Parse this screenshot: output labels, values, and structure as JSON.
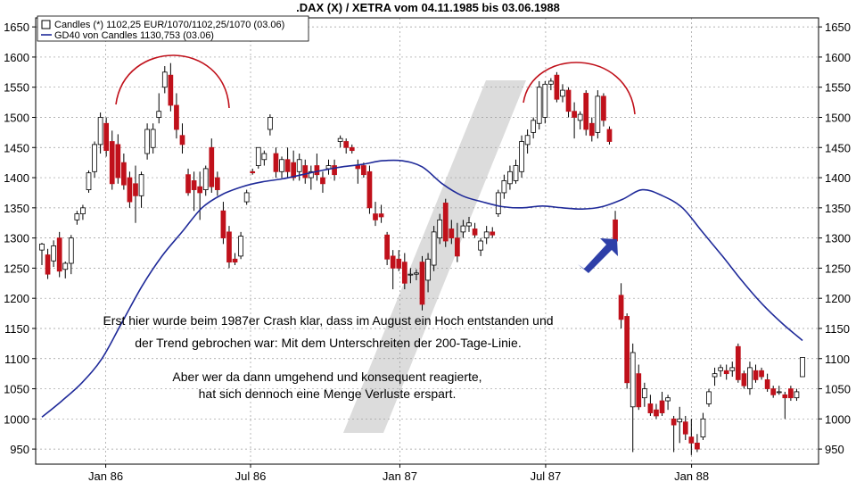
{
  "chart_data": {
    "type": "candlestick",
    "title": ".DAX (X) / XETRA vom 04.11.1985 bis 03.06.1988",
    "ylim": [
      925,
      1665
    ],
    "y_ticks": [
      950,
      1000,
      1050,
      1100,
      1150,
      1200,
      1250,
      1300,
      1350,
      1400,
      1450,
      1500,
      1550,
      1600,
      1650
    ],
    "x_ticks": [
      "Jan 86",
      "Jul 86",
      "Jan 87",
      "Jul 87",
      "Jan 88"
    ],
    "grid": true,
    "legend_position": "top-left",
    "colors": {
      "up_candle": "#ffffff",
      "down_candle": "#c0111b",
      "wick": "#000000",
      "ma_line": "#1f2a99",
      "arc": "#c0111b",
      "arrow": "#2e3fa8",
      "watermark": "#dcdcdc",
      "grid": "#999999"
    },
    "legend": [
      {
        "label": "Candles (*) 1102,25 EUR/1070/1102,25/1070 (03.06)",
        "swatch": "candle"
      },
      {
        "label": "GD40 von Candles 1130,753 (03.06)",
        "swatch": "line"
      }
    ],
    "candles_note": "weekly OHLC estimated from the chart",
    "candles": [
      {
        "o": 1280,
        "h": 1292,
        "l": 1255,
        "c": 1290
      },
      {
        "o": 1272,
        "h": 1282,
        "l": 1232,
        "c": 1240
      },
      {
        "o": 1262,
        "h": 1296,
        "l": 1252,
        "c": 1287
      },
      {
        "o": 1300,
        "h": 1310,
        "l": 1235,
        "c": 1245
      },
      {
        "o": 1248,
        "h": 1261,
        "l": 1233,
        "c": 1258
      },
      {
        "o": 1258,
        "h": 1305,
        "l": 1240,
        "c": 1300
      },
      {
        "o": 1330,
        "h": 1345,
        "l": 1322,
        "c": 1340
      },
      {
        "o": 1340,
        "h": 1355,
        "l": 1330,
        "c": 1350
      },
      {
        "o": 1380,
        "h": 1412,
        "l": 1375,
        "c": 1408
      },
      {
        "o": 1410,
        "h": 1460,
        "l": 1400,
        "c": 1455
      },
      {
        "o": 1455,
        "h": 1508,
        "l": 1440,
        "c": 1500
      },
      {
        "o": 1490,
        "h": 1500,
        "l": 1435,
        "c": 1445
      },
      {
        "o": 1460,
        "h": 1478,
        "l": 1380,
        "c": 1390
      },
      {
        "o": 1455,
        "h": 1472,
        "l": 1390,
        "c": 1400
      },
      {
        "o": 1425,
        "h": 1440,
        "l": 1380,
        "c": 1388
      },
      {
        "o": 1400,
        "h": 1410,
        "l": 1350,
        "c": 1360
      },
      {
        "o": 1390,
        "h": 1420,
        "l": 1325,
        "c": 1370
      },
      {
        "o": 1370,
        "h": 1410,
        "l": 1350,
        "c": 1405
      },
      {
        "o": 1440,
        "h": 1490,
        "l": 1430,
        "c": 1480
      },
      {
        "o": 1450,
        "h": 1490,
        "l": 1440,
        "c": 1480
      },
      {
        "o": 1500,
        "h": 1540,
        "l": 1490,
        "c": 1510
      },
      {
        "o": 1550,
        "h": 1585,
        "l": 1540,
        "c": 1575
      },
      {
        "o": 1570,
        "h": 1590,
        "l": 1510,
        "c": 1520
      },
      {
        "o": 1520,
        "h": 1540,
        "l": 1465,
        "c": 1480
      },
      {
        "o": 1470,
        "h": 1490,
        "l": 1440,
        "c": 1455
      },
      {
        "o": 1405,
        "h": 1415,
        "l": 1370,
        "c": 1375
      },
      {
        "o": 1395,
        "h": 1410,
        "l": 1345,
        "c": 1380
      },
      {
        "o": 1385,
        "h": 1410,
        "l": 1330,
        "c": 1375
      },
      {
        "o": 1380,
        "h": 1420,
        "l": 1370,
        "c": 1415
      },
      {
        "o": 1450,
        "h": 1465,
        "l": 1375,
        "c": 1385
      },
      {
        "o": 1400,
        "h": 1410,
        "l": 1370,
        "c": 1380
      },
      {
        "o": 1345,
        "h": 1360,
        "l": 1290,
        "c": 1300
      },
      {
        "o": 1310,
        "h": 1320,
        "l": 1250,
        "c": 1260
      },
      {
        "o": 1265,
        "h": 1275,
        "l": 1255,
        "c": 1260
      },
      {
        "o": 1270,
        "h": 1310,
        "l": 1265,
        "c": 1303
      },
      {
        "o": 1360,
        "h": 1380,
        "l": 1355,
        "c": 1375
      },
      {
        "o": 1410,
        "h": 1415,
        "l": 1405,
        "c": 1408
      },
      {
        "o": 1420,
        "h": 1450,
        "l": 1415,
        "c": 1450
      },
      {
        "o": 1430,
        "h": 1445,
        "l": 1420,
        "c": 1440
      },
      {
        "o": 1480,
        "h": 1505,
        "l": 1470,
        "c": 1500
      },
      {
        "o": 1440,
        "h": 1450,
        "l": 1400,
        "c": 1410
      },
      {
        "o": 1410,
        "h": 1435,
        "l": 1400,
        "c": 1430
      },
      {
        "o": 1430,
        "h": 1450,
        "l": 1400,
        "c": 1410
      },
      {
        "o": 1425,
        "h": 1445,
        "l": 1395,
        "c": 1400
      },
      {
        "o": 1410,
        "h": 1440,
        "l": 1395,
        "c": 1430
      },
      {
        "o": 1420,
        "h": 1430,
        "l": 1390,
        "c": 1400
      },
      {
        "o": 1400,
        "h": 1420,
        "l": 1380,
        "c": 1410
      },
      {
        "o": 1420,
        "h": 1440,
        "l": 1395,
        "c": 1405
      },
      {
        "o": 1400,
        "h": 1410,
        "l": 1375,
        "c": 1390
      },
      {
        "o": 1415,
        "h": 1430,
        "l": 1405,
        "c": 1420
      },
      {
        "o": 1420,
        "h": 1430,
        "l": 1395,
        "c": 1405
      },
      {
        "o": 1460,
        "h": 1470,
        "l": 1450,
        "c": 1465
      },
      {
        "o": 1460,
        "h": 1465,
        "l": 1440,
        "c": 1450
      },
      {
        "o": 1450,
        "h": 1455,
        "l": 1440,
        "c": 1445
      },
      {
        "o": 1420,
        "h": 1430,
        "l": 1390,
        "c": 1415
      },
      {
        "o": 1420,
        "h": 1425,
        "l": 1400,
        "c": 1405
      },
      {
        "o": 1410,
        "h": 1420,
        "l": 1340,
        "c": 1350
      },
      {
        "o": 1340,
        "h": 1360,
        "l": 1320,
        "c": 1330
      },
      {
        "o": 1340,
        "h": 1355,
        "l": 1325,
        "c": 1335
      },
      {
        "o": 1305,
        "h": 1310,
        "l": 1255,
        "c": 1265
      },
      {
        "o": 1270,
        "h": 1280,
        "l": 1215,
        "c": 1250
      },
      {
        "o": 1265,
        "h": 1280,
        "l": 1245,
        "c": 1250
      },
      {
        "o": 1260,
        "h": 1275,
        "l": 1215,
        "c": 1225
      },
      {
        "o": 1240,
        "h": 1250,
        "l": 1225,
        "c": 1240
      },
      {
        "o": 1240,
        "h": 1248,
        "l": 1230,
        "c": 1242
      },
      {
        "o": 1260,
        "h": 1270,
        "l": 1180,
        "c": 1190
      },
      {
        "o": 1230,
        "h": 1275,
        "l": 1210,
        "c": 1265
      },
      {
        "o": 1255,
        "h": 1320,
        "l": 1245,
        "c": 1310
      },
      {
        "o": 1300,
        "h": 1340,
        "l": 1290,
        "c": 1330
      },
      {
        "o": 1358,
        "h": 1365,
        "l": 1285,
        "c": 1295
      },
      {
        "o": 1315,
        "h": 1330,
        "l": 1290,
        "c": 1300
      },
      {
        "o": 1300,
        "h": 1325,
        "l": 1260,
        "c": 1270
      },
      {
        "o": 1310,
        "h": 1330,
        "l": 1300,
        "c": 1320
      },
      {
        "o": 1320,
        "h": 1335,
        "l": 1310,
        "c": 1325
      },
      {
        "o": 1315,
        "h": 1325,
        "l": 1300,
        "c": 1305
      },
      {
        "o": 1280,
        "h": 1300,
        "l": 1270,
        "c": 1295
      },
      {
        "o": 1300,
        "h": 1320,
        "l": 1290,
        "c": 1310
      },
      {
        "o": 1310,
        "h": 1318,
        "l": 1300,
        "c": 1305
      },
      {
        "o": 1340,
        "h": 1380,
        "l": 1335,
        "c": 1375
      },
      {
        "o": 1375,
        "h": 1405,
        "l": 1365,
        "c": 1395
      },
      {
        "o": 1390,
        "h": 1420,
        "l": 1380,
        "c": 1410
      },
      {
        "o": 1395,
        "h": 1430,
        "l": 1390,
        "c": 1420
      },
      {
        "o": 1410,
        "h": 1470,
        "l": 1400,
        "c": 1460
      },
      {
        "o": 1455,
        "h": 1480,
        "l": 1440,
        "c": 1470
      },
      {
        "o": 1475,
        "h": 1500,
        "l": 1465,
        "c": 1495
      },
      {
        "o": 1490,
        "h": 1560,
        "l": 1480,
        "c": 1550
      },
      {
        "o": 1500,
        "h": 1560,
        "l": 1490,
        "c": 1555
      },
      {
        "o": 1555,
        "h": 1565,
        "l": 1545,
        "c": 1560
      },
      {
        "o": 1570,
        "h": 1575,
        "l": 1525,
        "c": 1530
      },
      {
        "o": 1535,
        "h": 1555,
        "l": 1525,
        "c": 1545
      },
      {
        "o": 1545,
        "h": 1550,
        "l": 1500,
        "c": 1510
      },
      {
        "o": 1510,
        "h": 1525,
        "l": 1465,
        "c": 1500
      },
      {
        "o": 1495,
        "h": 1510,
        "l": 1480,
        "c": 1505
      },
      {
        "o": 1540,
        "h": 1545,
        "l": 1470,
        "c": 1480
      },
      {
        "o": 1490,
        "h": 1500,
        "l": 1460,
        "c": 1470
      },
      {
        "o": 1475,
        "h": 1545,
        "l": 1465,
        "c": 1535
      },
      {
        "o": 1535,
        "h": 1540,
        "l": 1485,
        "c": 1495
      },
      {
        "o": 1480,
        "h": 1485,
        "l": 1455,
        "c": 1460
      },
      {
        "o": 1330,
        "h": 1345,
        "l": 1285,
        "c": 1295
      },
      {
        "o": 1205,
        "h": 1225,
        "l": 1150,
        "c": 1165
      },
      {
        "o": 1170,
        "h": 1175,
        "l": 1050,
        "c": 1060
      },
      {
        "o": 1020,
        "h": 1125,
        "l": 945,
        "c": 1110
      },
      {
        "o": 1075,
        "h": 1090,
        "l": 1015,
        "c": 1020
      },
      {
        "o": 1035,
        "h": 1060,
        "l": 1020,
        "c": 1050
      },
      {
        "o": 1025,
        "h": 1040,
        "l": 1005,
        "c": 1010
      },
      {
        "o": 1015,
        "h": 1025,
        "l": 1000,
        "c": 1005
      },
      {
        "o": 1030,
        "h": 1045,
        "l": 1005,
        "c": 1010
      },
      {
        "o": 1030,
        "h": 1040,
        "l": 1015,
        "c": 1035
      },
      {
        "o": 1000,
        "h": 1005,
        "l": 945,
        "c": 990
      },
      {
        "o": 995,
        "h": 1020,
        "l": 960,
        "c": 1000
      },
      {
        "o": 995,
        "h": 1005,
        "l": 965,
        "c": 975
      },
      {
        "o": 970,
        "h": 1000,
        "l": 940,
        "c": 960
      },
      {
        "o": 960,
        "h": 975,
        "l": 945,
        "c": 950
      },
      {
        "o": 970,
        "h": 1010,
        "l": 965,
        "c": 1000
      },
      {
        "o": 1025,
        "h": 1050,
        "l": 1020,
        "c": 1045
      },
      {
        "o": 1070,
        "h": 1085,
        "l": 1055,
        "c": 1075
      },
      {
        "o": 1080,
        "h": 1090,
        "l": 1070,
        "c": 1085
      },
      {
        "o": 1080,
        "h": 1090,
        "l": 1065,
        "c": 1075
      },
      {
        "o": 1080,
        "h": 1095,
        "l": 1070,
        "c": 1085
      },
      {
        "o": 1120,
        "h": 1125,
        "l": 1060,
        "c": 1065
      },
      {
        "o": 1075,
        "h": 1080,
        "l": 1050,
        "c": 1055
      },
      {
        "o": 1050,
        "h": 1095,
        "l": 1040,
        "c": 1085
      },
      {
        "o": 1080,
        "h": 1090,
        "l": 1060,
        "c": 1065
      },
      {
        "o": 1080,
        "h": 1085,
        "l": 1065,
        "c": 1070
      },
      {
        "o": 1065,
        "h": 1075,
        "l": 1045,
        "c": 1050
      },
      {
        "o": 1050,
        "h": 1055,
        "l": 1035,
        "c": 1040
      },
      {
        "o": 1045,
        "h": 1055,
        "l": 1040,
        "c": 1045
      },
      {
        "o": 1040,
        "h": 1045,
        "l": 1000,
        "c": 1035
      },
      {
        "o": 1050,
        "h": 1055,
        "l": 1030,
        "c": 1035
      },
      {
        "o": 1035,
        "h": 1050,
        "l": 1030,
        "c": 1045
      },
      {
        "o": 1070,
        "h": 1102,
        "l": 1070,
        "c": 1102
      }
    ],
    "ma": {
      "name": "GD40",
      "values": [
        1003,
        1030,
        1060,
        1100,
        1160,
        1220,
        1270,
        1310,
        1350,
        1372,
        1385,
        1393,
        1398,
        1405,
        1412,
        1418,
        1422,
        1428,
        1428,
        1418,
        1390,
        1370,
        1360,
        1352,
        1350,
        1353,
        1350,
        1348,
        1352,
        1364,
        1380,
        1370,
        1350,
        1310,
        1270,
        1228,
        1190,
        1158,
        1130
      ]
    },
    "annotations": [
      "Erst hier wurde beim 1987er Crash klar, dass im August ein Hoch entstanden und",
      "der Trend gebrochen war: Mit dem Unterschreiten der 200-Tage-Linie.",
      "Aber wer da dann umgehend und konsequent reagierte,",
      "hat sich dennoch eine Menge Verluste erspart."
    ]
  }
}
